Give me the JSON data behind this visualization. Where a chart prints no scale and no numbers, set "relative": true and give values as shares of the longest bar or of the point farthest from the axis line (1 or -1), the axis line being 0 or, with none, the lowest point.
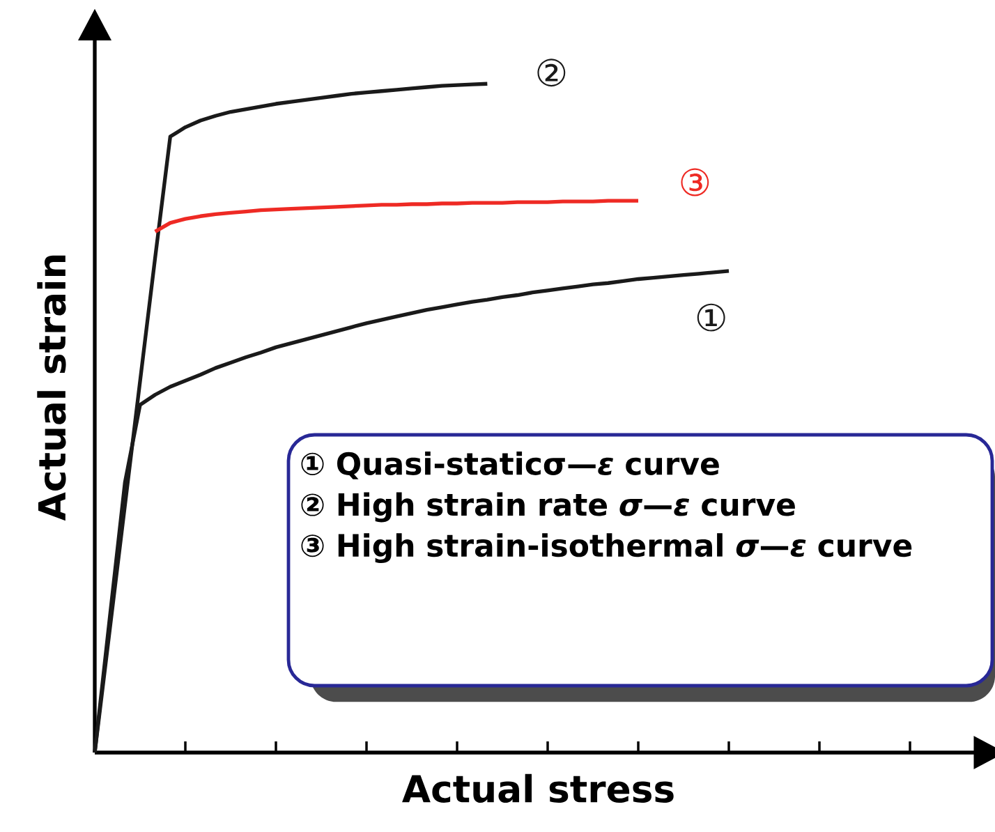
{
  "chart_data": {
    "type": "line",
    "relative": true,
    "xlabel": "Actual stress",
    "ylabel": "Actual strain",
    "categories": [
      null,
      null,
      null,
      null,
      null,
      null,
      null,
      null,
      null,
      null,
      null,
      null,
      null,
      null,
      null,
      null,
      null,
      null,
      null,
      null,
      null,
      null,
      null,
      null,
      null,
      null,
      null,
      null,
      null,
      null,
      null,
      null,
      null,
      null,
      null,
      null,
      null,
      null,
      null,
      null,
      null,
      null,
      null,
      null,
      null,
      null,
      null,
      null,
      null,
      null,
      null,
      null,
      null,
      null,
      null,
      null,
      null,
      null,
      null
    ],
    "series": [
      {
        "name": "①",
        "color": "#1a1a1a",
        "values": [
          0,
          0.203,
          0.404,
          0.52,
          0.535,
          0.547,
          0.556,
          0.565,
          0.575,
          0.583,
          0.591,
          0.598,
          0.606,
          0.612,
          0.618,
          0.624,
          0.63,
          0.636,
          0.642,
          0.647,
          0.652,
          0.657,
          0.662,
          0.666,
          0.67,
          0.674,
          0.677,
          0.681,
          0.684,
          0.688,
          0.691,
          0.694,
          0.697,
          0.7,
          0.702,
          0.705,
          0.708,
          0.71,
          0.712,
          0.714,
          0.716,
          0.718,
          0.72,
          null,
          null,
          null,
          null,
          null,
          null,
          null,
          null,
          null,
          null,
          null,
          null,
          null,
          null,
          null,
          null
        ]
      },
      {
        "name": "②",
        "color": "#1a1a1a",
        "values": [
          0,
          0.185,
          0.37,
          0.555,
          0.74,
          0.921,
          0.935,
          0.945,
          0.952,
          0.958,
          0.962,
          0.966,
          0.97,
          0.973,
          0.976,
          0.979,
          0.982,
          0.985,
          0.987,
          0.989,
          0.991,
          0.993,
          0.995,
          0.997,
          0.998,
          0.999,
          1,
          null,
          null,
          null,
          null,
          null,
          null,
          null,
          null,
          null,
          null,
          null,
          null,
          null,
          null,
          null,
          null,
          null,
          null,
          null,
          null,
          null,
          null,
          null,
          null,
          null,
          null,
          null,
          null,
          null,
          null,
          null,
          null
        ]
      },
      {
        "name": "③",
        "color": "#ee2a24",
        "values": [
          null,
          null,
          null,
          null,
          0.779,
          0.792,
          0.798,
          0.802,
          0.805,
          0.807,
          0.809,
          0.811,
          0.812,
          0.813,
          0.814,
          0.815,
          0.816,
          0.817,
          0.818,
          0.819,
          0.819,
          0.82,
          0.82,
          0.821,
          0.821,
          0.822,
          0.822,
          0.822,
          0.823,
          0.823,
          0.823,
          0.824,
          0.824,
          0.824,
          0.825,
          0.825,
          0.825,
          null,
          null,
          null,
          null,
          null,
          null,
          null,
          null,
          null,
          null,
          null,
          null,
          null,
          null,
          null,
          null,
          null,
          null,
          null,
          null,
          null,
          null
        ]
      }
    ],
    "annotations": [
      "① Quasi-staticσ—*ε* curve",
      "② High strain rate *σ*—*ε* curve",
      "③ High strain-isothermal *σ*—*ε* curve"
    ]
  }
}
